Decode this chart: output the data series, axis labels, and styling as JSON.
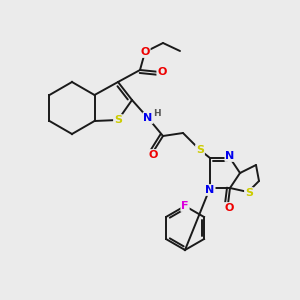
{
  "background_color": "#ebebeb",
  "bond_color": "#1a1a1a",
  "atom_colors": {
    "S": "#cccc00",
    "N": "#0000ee",
    "O": "#ee0000",
    "F": "#dd00dd",
    "H": "#555555",
    "C": "#1a1a1a"
  },
  "figsize": [
    3.0,
    3.0
  ],
  "dpi": 100
}
